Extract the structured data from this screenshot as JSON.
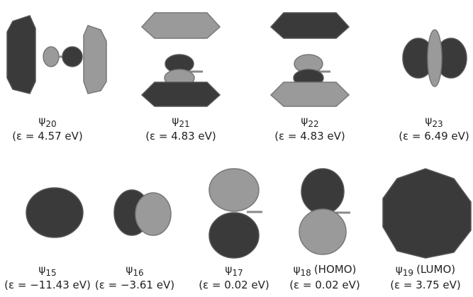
{
  "orbitals": [
    {
      "symbol": "ψ",
      "index": "20",
      "energy": "(ε = 4.57 eV)"
    },
    {
      "symbol": "ψ",
      "index": "21",
      "energy": "(ε = 4.83 eV)"
    },
    {
      "symbol": "ψ",
      "index": "22",
      "energy": "(ε = 4.83 eV)"
    },
    {
      "symbol": "ψ",
      "index": "23",
      "energy": "(ε = 6.49 eV)"
    },
    {
      "symbol": "ψ",
      "index": "15",
      "energy": "(ε = −11.43 eV)"
    },
    {
      "symbol": "ψ",
      "index": "16",
      "energy": "(ε = −3.61 eV)"
    },
    {
      "symbol": "ψ",
      "index": "17",
      "energy": "(ε = 0.02 eV)"
    },
    {
      "symbol": "ψ",
      "index": "18",
      "note": "(HOMO)",
      "energy": "(ε = 0.02 eV)"
    },
    {
      "symbol": "ψ",
      "index": "19",
      "note": "(LUMO)",
      "energy": "(ε = 3.75 eV)"
    }
  ]
}
